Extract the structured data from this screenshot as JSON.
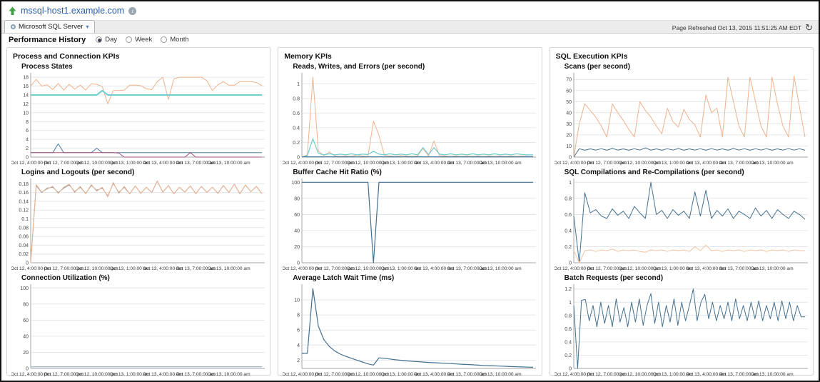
{
  "page": {
    "hostname": "mssql-host1.example.com",
    "icons": {
      "host_status": "up-arrow",
      "info": "i",
      "tab_caret": "▾",
      "refresh": "↻"
    },
    "tab": {
      "label": "Microsoft SQL Server"
    },
    "refresh": {
      "label": "Page Refreshed Oct 13, 2015 11:51:25 AM EDT"
    },
    "controls": {
      "title": "Performance History",
      "options": [
        "Day",
        "Week",
        "Month"
      ],
      "selected": "Day"
    },
    "columns": [
      {
        "header": "Process and Connection KPIs"
      },
      {
        "header": "Memory KPIs"
      },
      {
        "header": "SQL Execution KPIs"
      }
    ]
  },
  "chart_data": [
    {
      "type": "line",
      "title": "Process States",
      "column": 0,
      "ylim": [
        0,
        18.5
      ],
      "yticks": [
        0,
        2,
        4,
        6,
        8,
        10,
        12,
        14,
        16,
        18
      ],
      "x_span": 0.857,
      "x_labels": [
        "Oct 12, 4:00:00 pm",
        "Oct 12, 7:00:00 pm",
        "Oct 12, 10:00:00 pm",
        "Oct 13, 1:00:00 am",
        "Oct 13, 4:00:00 am",
        "Oct 13, 7:00:00 am",
        "Oct 13, 10:00:00 am"
      ],
      "series": [
        {
          "name": "line-1",
          "color": "#f0b28c",
          "width": 1,
          "values": [
            16,
            17.5,
            16,
            16.3,
            15.2,
            16.6,
            15.1,
            16.4,
            15.3,
            16.2,
            15.1,
            16.5,
            16.4,
            15.9,
            12,
            15,
            15,
            15.1,
            16.2,
            16.2,
            16.1,
            15.4,
            15.2,
            17,
            18,
            13,
            17.6,
            18,
            18,
            18,
            18,
            18,
            17.2,
            15,
            16.3,
            17,
            16.2,
            16.2,
            17,
            17,
            17,
            16.8,
            16.1
          ]
        },
        {
          "name": "line-2",
          "color": "#6fcfcf",
          "width": 2,
          "values": [
            14,
            14,
            14,
            14,
            14,
            14,
            14,
            14,
            14,
            14,
            14,
            14,
            14,
            15,
            14,
            14,
            14,
            14,
            14,
            14,
            14,
            14,
            14,
            14,
            14,
            14,
            14,
            14,
            14,
            14,
            14,
            14,
            14,
            14,
            14,
            14,
            14,
            14,
            14,
            14,
            14,
            14,
            14
          ]
        },
        {
          "name": "line-3",
          "color": "#4d7ea3",
          "width": 1,
          "values": [
            1,
            1,
            1,
            1,
            1,
            3,
            1,
            1,
            1,
            1,
            1,
            1,
            2,
            1,
            1,
            1,
            1,
            1,
            1,
            1,
            1,
            1,
            1,
            1,
            1,
            1,
            1,
            1,
            1,
            1,
            1,
            1,
            1,
            1,
            1,
            1,
            1,
            1,
            1,
            1,
            1,
            1,
            1
          ]
        },
        {
          "name": "line-4",
          "color": "#a3527d",
          "width": 1,
          "values": [
            1,
            1,
            1,
            1,
            1,
            1,
            1,
            1,
            1,
            1,
            1,
            1,
            1,
            1,
            1,
            1,
            0.9,
            0,
            0,
            0,
            0,
            0,
            0,
            0,
            0,
            0,
            0,
            0,
            0,
            1,
            0,
            0,
            0,
            0,
            0,
            0,
            0,
            0,
            0,
            0,
            0,
            0,
            0
          ]
        }
      ]
    },
    {
      "type": "line",
      "title": "Logins and Logouts (per second)",
      "column": 0,
      "ylim": [
        0,
        0.187
      ],
      "yticks": [
        0,
        0.02,
        0.04,
        0.06,
        0.08,
        0.1,
        0.12,
        0.14,
        0.16,
        0.18
      ],
      "x_span": 0.857,
      "x_labels": [
        "Oct 12, 4:00:00 pm",
        "Oct 12, 7:00:00 pm",
        "Oct 12, 10:00:00 pm",
        "Oct 13, 1:00:00 am",
        "Oct 13, 4:00:00 am",
        "Oct 13, 7:00:00 am",
        "Oct 13, 10:00:00 am"
      ],
      "series": [
        {
          "name": "line-1",
          "color": "#8294a3",
          "width": 1,
          "values": [
            0,
            0.176,
            0.16,
            0.17,
            0.172,
            0.16,
            0.17,
            0.177,
            0.162,
            0.172,
            0.158,
            0.176,
            0.165,
            0.17,
            0.152,
            0.181,
            0.16,
            0.172,
            0.157,
            0.175,
            0.158,
            0.172,
            0.16,
            0.186,
            0.161,
            0.176,
            0.157,
            0.172,
            0.161,
            0.175,
            0.157,
            0.174,
            0.16,
            0.172,
            0.158,
            0.176,
            0.16,
            0.179,
            0.157,
            0.177,
            0.162,
            0.174,
            0.157
          ]
        },
        {
          "name": "line-2",
          "color": "#f0b28c",
          "width": 1,
          "values": [
            0,
            0.178,
            0.161,
            0.168,
            0.174,
            0.158,
            0.172,
            0.179,
            0.16,
            0.174,
            0.157,
            0.178,
            0.163,
            0.172,
            0.15,
            0.183,
            0.158,
            0.174,
            0.157,
            0.175,
            0.158,
            0.172,
            0.16,
            0.186,
            0.161,
            0.176,
            0.157,
            0.172,
            0.161,
            0.175,
            0.157,
            0.174,
            0.16,
            0.172,
            0.158,
            0.176,
            0.16,
            0.179,
            0.157,
            0.177,
            0.162,
            0.174,
            0.157
          ]
        }
      ]
    },
    {
      "type": "line",
      "title": "Connection Utilization (%)",
      "column": 0,
      "ylim": [
        0,
        102
      ],
      "yticks": [
        0,
        20,
        40,
        60,
        80,
        100
      ],
      "x_span": 0.857,
      "x_labels": [
        "Oct 12, 4:00:00 pm",
        "Oct 12, 7:00:00 pm",
        "Oct 12, 10:00:00 pm",
        "Oct 13, 1:00:00 am",
        "Oct 13, 4:00:00 am",
        "Oct 13, 7:00:00 am",
        "Oct 13, 10:00:00 am"
      ],
      "series": [
        {
          "name": "line-1",
          "color": "#9fbcd2",
          "width": 1.4,
          "values": [
            2,
            2
          ]
        }
      ]
    },
    {
      "type": "line",
      "title": "Reads, Writes, and Errors (per second)",
      "column": 1,
      "ylim": [
        0,
        1.12
      ],
      "yticks": [
        0,
        0.2,
        0.4,
        0.6,
        0.8,
        1
      ],
      "x_span": 0.857,
      "x_labels": [
        "Oct 12, 4:00:00 pm",
        "Oct 12, 7:00:00 pm",
        "Oct 12, 10:00:00 pm",
        "Oct 13, 1:00:00 am",
        "Oct 13, 4:00:00 am",
        "Oct 13, 7:00:00 am",
        "Oct 13, 10:00:00 am"
      ],
      "series": [
        {
          "name": "line-1",
          "color": "#f0b28c",
          "width": 1,
          "values": [
            0,
            0.03,
            1.09,
            0.08,
            0.02,
            0.07,
            0.015,
            0.01,
            0.015,
            0.01,
            0.03,
            0.015,
            0.01,
            0.49,
            0.3,
            0.02,
            0.015,
            0.01,
            0.02,
            0.015,
            0.01,
            0.015,
            0.12,
            0.015,
            0.22,
            0.02,
            0.015,
            0.01,
            0.015,
            0.01,
            0.015,
            0.01,
            0.015,
            0.01,
            0.015,
            0.01,
            0.015,
            0.01,
            0.015,
            0.01,
            0.015,
            0.01,
            0.01
          ]
        },
        {
          "name": "line-2",
          "color": "#6fcfcf",
          "width": 1.2,
          "values": [
            0,
            0.02,
            0.25,
            0.05,
            0.03,
            0.045,
            0.03,
            0.04,
            0.03,
            0.045,
            0.03,
            0.04,
            0.035,
            0.08,
            0.04,
            0.03,
            0.045,
            0.03,
            0.04,
            0.03,
            0.045,
            0.03,
            0.13,
            0.035,
            0.13,
            0.04,
            0.03,
            0.045,
            0.03,
            0.04,
            0.03,
            0.045,
            0.03,
            0.04,
            0.03,
            0.045,
            0.03,
            0.04,
            0.03,
            0.045,
            0.035,
            0.03,
            0.03
          ]
        },
        {
          "name": "line-3",
          "color": "#4d7ea3",
          "width": 1.2,
          "values": [
            0.004,
            0.004
          ]
        }
      ]
    },
    {
      "type": "line",
      "title": "Buffer Cache Hit Ratio (%)",
      "column": 1,
      "ylim": [
        0,
        102
      ],
      "yticks": [
        0,
        20,
        40,
        60,
        80,
        100
      ],
      "x_span": 0.857,
      "x_labels": [
        "Oct 12, 4:00:00 pm",
        "Oct 12, 7:00:00 pm",
        "Oct 12, 10:00:00 pm",
        "Oct 13, 1:00:00 am",
        "Oct 13, 4:00:00 am",
        "Oct 13, 7:00:00 am",
        "Oct 13, 10:00:00 am"
      ],
      "series": [
        {
          "name": "line-1",
          "color": "#44708f",
          "width": 1.2,
          "values": [
            100,
            100,
            100,
            100,
            100,
            100,
            100,
            100,
            100,
            100,
            100,
            100,
            100,
            0,
            100,
            100,
            100,
            100,
            100,
            100,
            100,
            100,
            100,
            100,
            100,
            100,
            100,
            100,
            100,
            100,
            100,
            100,
            100,
            100,
            100,
            100,
            100,
            100,
            100,
            100,
            100,
            100,
            100
          ]
        }
      ]
    },
    {
      "type": "line",
      "title": "Average Latch Wait Time (ms)",
      "column": 1,
      "ylim": [
        0.9,
        11.8
      ],
      "yticks": [
        2,
        4,
        6,
        8,
        10
      ],
      "x_span": 0.857,
      "x_labels": [
        "Oct 12, 4:00:00 pm",
        "Oct 12, 7:00:00 pm",
        "Oct 12, 10:00:00 pm",
        "Oct 13, 1:00:00 am",
        "Oct 13, 4:00:00 am",
        "Oct 13, 7:00:00 am",
        "Oct 13, 10:00:00 am"
      ],
      "series": [
        {
          "name": "line-1",
          "color": "#44708f",
          "width": 1.2,
          "values": [
            2.9,
            2.9,
            11.5,
            6.5,
            4.7,
            3.8,
            3.2,
            2.8,
            2.5,
            2.25,
            2.0,
            1.75,
            1.5,
            1.35,
            2.3,
            2.25,
            2.15,
            2.05,
            1.98,
            1.9,
            1.85,
            1.8,
            1.75,
            1.7,
            1.66,
            1.62,
            1.58,
            1.54,
            1.5,
            1.46,
            1.42,
            1.38,
            1.34,
            1.3,
            1.27,
            1.24,
            1.21,
            1.18,
            1.15,
            1.12,
            1.1,
            1.07,
            1.05
          ]
        }
      ]
    },
    {
      "type": "line",
      "title": "Scans (per second)",
      "column": 2,
      "ylim": [
        0,
        74
      ],
      "yticks": [
        0,
        10,
        20,
        30,
        40,
        50,
        60,
        70
      ],
      "x_span": 0.857,
      "x_labels": [
        "Oct 12, 4:00:00 pm",
        "Oct 12, 7:00:00 pm",
        "Oct 12, 10:00:00 pm",
        "Oct 13, 1:00:00 am",
        "Oct 13, 4:00:00 am",
        "Oct 13, 7:00:00 am",
        "Oct 13, 10:00:00 am"
      ],
      "series": [
        {
          "name": "line-1",
          "color": "#f0b28c",
          "width": 1,
          "values": [
            0,
            30,
            48,
            42,
            36,
            28,
            18,
            48,
            40,
            33,
            25,
            18,
            50,
            42,
            36,
            28,
            21,
            44,
            32,
            27,
            43,
            34,
            29,
            18,
            56,
            40,
            44,
            18,
            72,
            50,
            28,
            18,
            72,
            50,
            28,
            18,
            72,
            48,
            28,
            18,
            73,
            45,
            18
          ]
        },
        {
          "name": "line-2",
          "color": "#44708f",
          "width": 1,
          "values": [
            0,
            7.5,
            6.2,
            7.4,
            6.3,
            7.5,
            6.2,
            7.8,
            6.3,
            7.4,
            6.2,
            7.5,
            6.3,
            8.3,
            6.3,
            7.4,
            6.2,
            7.5,
            6.3,
            7.7,
            6.2,
            7.4,
            6.3,
            7.5,
            6.2,
            7.6,
            6.3,
            7.4,
            6.2,
            7.7,
            6.3,
            7.5,
            6.2,
            7.5,
            6.3,
            7.6,
            6.2,
            7.4,
            6.3,
            7.6,
            6.3,
            7.5,
            6.2
          ]
        }
      ]
    },
    {
      "type": "line",
      "title": "SQL Compilations and Re-Compilations (per second)",
      "column": 2,
      "ylim": [
        0,
        1.02
      ],
      "yticks": [
        0,
        0.2,
        0.4,
        0.6,
        0.8,
        1
      ],
      "x_span": 0.857,
      "x_labels": [
        "Oct 12, 4:00:00 pm",
        "Oct 12, 7:00:00 pm",
        "Oct 12, 10:00:00 pm",
        "Oct 13, 1:00:00 am",
        "Oct 13, 4:00:00 am",
        "Oct 13, 7:00:00 am",
        "Oct 13, 10:00:00 am"
      ],
      "series": [
        {
          "name": "line-1",
          "color": "#44708f",
          "width": 1,
          "values": [
            0.58,
            0,
            0.87,
            0.62,
            0.66,
            0.58,
            0.55,
            0.67,
            0.59,
            0.64,
            0.55,
            0.7,
            0.62,
            0.55,
            1.0,
            0.6,
            0.65,
            0.55,
            0.66,
            0.59,
            0.64,
            0.55,
            0.88,
            0.58,
            0.9,
            0.55,
            0.65,
            0.58,
            0.67,
            0.55,
            0.64,
            0.6,
            0.55,
            0.68,
            0.58,
            0.65,
            0.55,
            0.66,
            0.6,
            0.55,
            0.64,
            0.6,
            0.54
          ]
        },
        {
          "name": "line-2",
          "color": "#f3c3a0",
          "width": 1,
          "values": [
            0.15,
            0,
            0.15,
            0.16,
            0.14,
            0.16,
            0.15,
            0.17,
            0.14,
            0.16,
            0.15,
            0.16,
            0.14,
            0.13,
            0.16,
            0.15,
            0.16,
            0.14,
            0.16,
            0.15,
            0.16,
            0.14,
            0.2,
            0.15,
            0.22,
            0.15,
            0.16,
            0.14,
            0.16,
            0.15,
            0.16,
            0.14,
            0.16,
            0.15,
            0.16,
            0.14,
            0.16,
            0.15,
            0.16,
            0.14,
            0.16,
            0.15,
            0.15
          ]
        }
      ]
    },
    {
      "type": "line",
      "title": "Batch Requests (per second)",
      "column": 2,
      "ylim": [
        0,
        1.24
      ],
      "yticks": [
        0,
        0.2,
        0.4,
        0.6,
        0.8,
        1,
        1.2
      ],
      "x_span": 0.857,
      "x_labels": [
        "Oct 12, 4:00:00 pm",
        "Oct 12, 7:00:00 pm",
        "Oct 12, 10:00:00 pm",
        "Oct 13, 1:00:00 am",
        "Oct 13, 4:00:00 am",
        "Oct 13, 7:00:00 am",
        "Oct 13, 10:00:00 am"
      ],
      "series": [
        {
          "name": "line-1",
          "color": "#44708f",
          "width": 1,
          "values": [
            0.95,
            0,
            1.03,
            1.04,
            0.72,
            0.95,
            0.63,
            1.0,
            0.68,
            0.95,
            0.63,
            1.05,
            0.7,
            0.92,
            0.63,
            1.0,
            0.7,
            1.05,
            0.65,
            0.95,
            1.13,
            0.68,
            1.0,
            0.63,
            0.95,
            0.7,
            1.05,
            0.65,
            1.0,
            0.72,
            0.95,
            1.2,
            0.72,
            1.0,
            1.12,
            0.75,
            1.0,
            0.72,
            0.95,
            0.75,
            1.0,
            0.72,
            1.05,
            0.75,
            0.95,
            0.72,
            1.0,
            0.75,
            1.02,
            0.72,
            0.95,
            0.75,
            1.0,
            0.72,
            1.02,
            0.75,
            1.0,
            0.72,
            0.95,
            0.78,
            0.78
          ]
        }
      ]
    }
  ]
}
